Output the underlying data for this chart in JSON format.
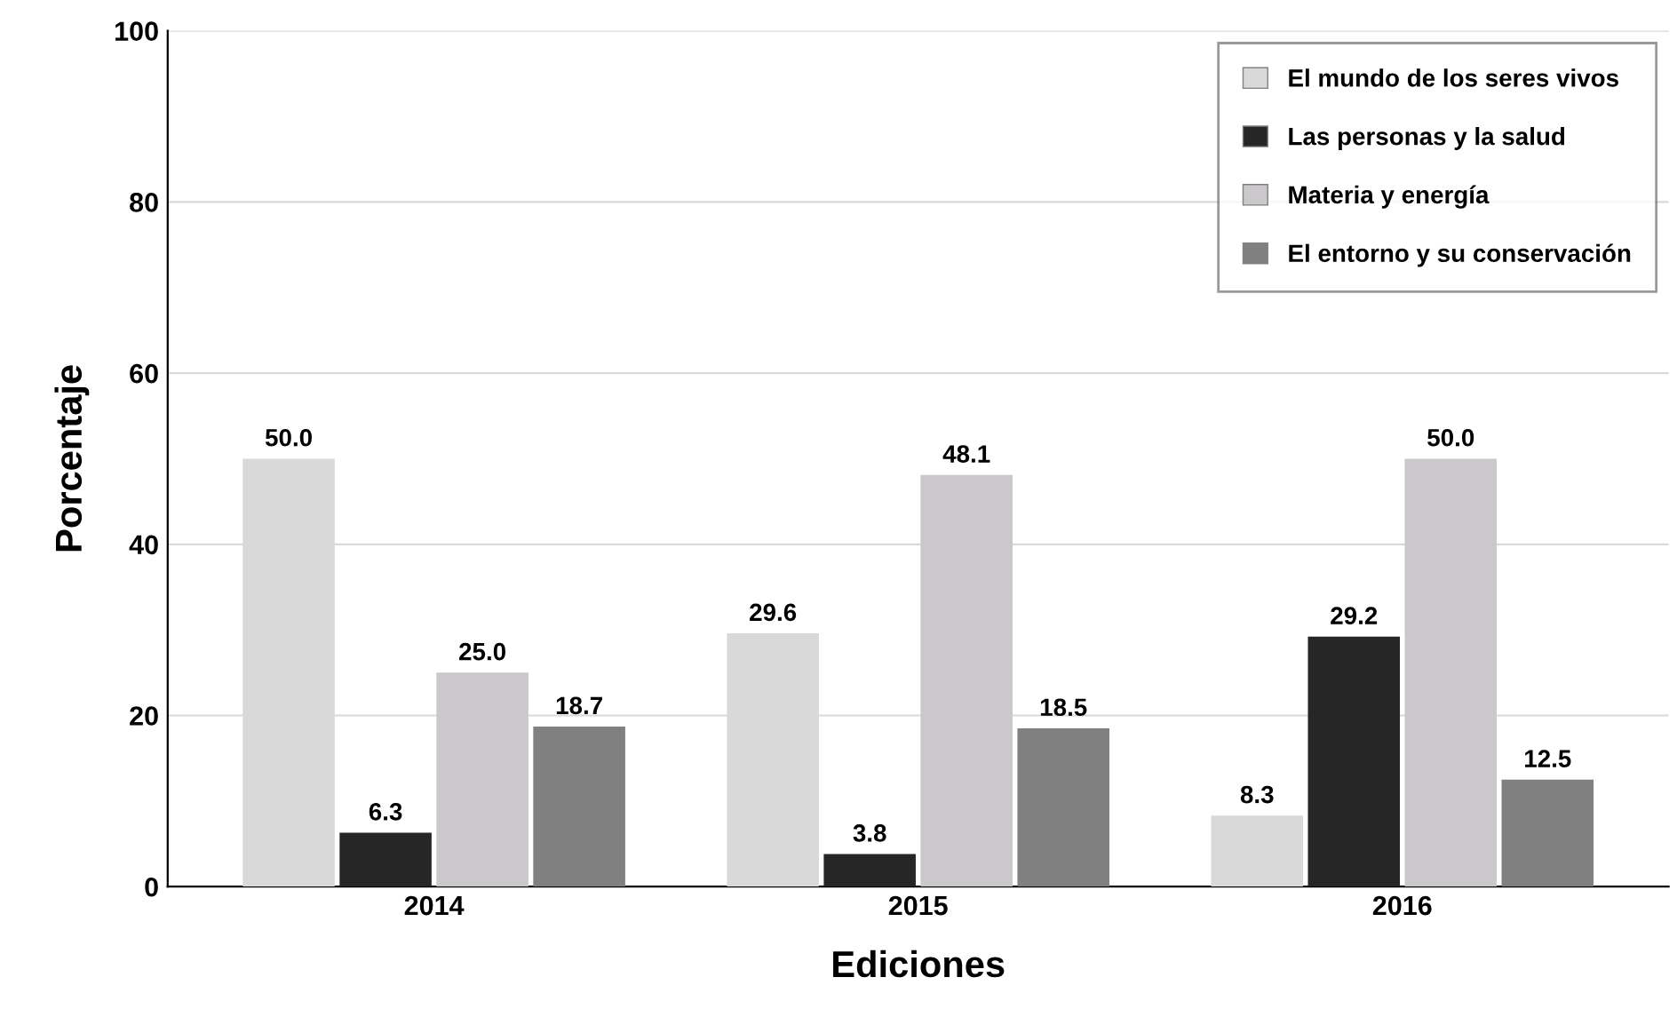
{
  "chart_data": {
    "type": "bar",
    "xlabel": "Ediciones",
    "ylabel": "Porcentaje",
    "categories": [
      "2014",
      "2015",
      "2016"
    ],
    "series": [
      {
        "name": "El mundo de los seres vivos",
        "color": "#d9d9d9",
        "values": [
          50.0,
          29.6,
          8.3
        ],
        "value_labels": [
          "50.0",
          "29.6",
          "8.3"
        ]
      },
      {
        "name": "Las personas y la salud",
        "color": "#262626",
        "values": [
          6.3,
          3.8,
          29.2
        ],
        "value_labels": [
          "6.3",
          "3.8",
          "29.2"
        ]
      },
      {
        "name": "Materia y energía",
        "color": "#cac8ca",
        "values": [
          25.0,
          48.1,
          50.0
        ],
        "value_labels": [
          "25.0",
          "48.1",
          "50.0"
        ]
      },
      {
        "name": "El entorno y su conservación",
        "color": "#808080",
        "values": [
          18.7,
          18.5,
          12.5
        ],
        "value_labels": [
          "18.7",
          "18.5",
          "12.5"
        ]
      }
    ],
    "ylim": [
      0,
      100
    ],
    "yticks": [
      0,
      20,
      40,
      60,
      80,
      100
    ],
    "grid": "y",
    "legend": "top right"
  }
}
